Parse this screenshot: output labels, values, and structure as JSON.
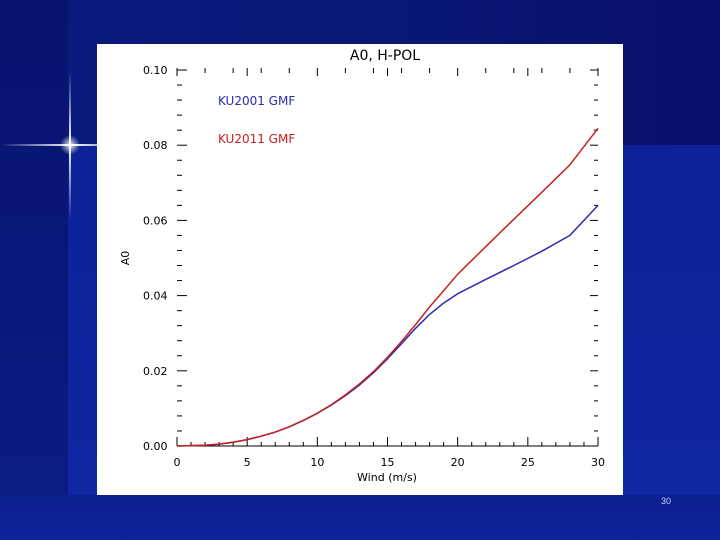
{
  "slide": {
    "number": "30"
  },
  "chart_data": {
    "type": "line",
    "title": "A0, H-POL",
    "xlabel": "Wind (m/s)",
    "ylabel": "A0",
    "xlim": [
      0,
      30
    ],
    "ylim": [
      0,
      0.1
    ],
    "x_ticks": [
      "0",
      "5",
      "10",
      "15",
      "20",
      "25",
      "30"
    ],
    "y_ticks": [
      "0.00",
      "0.02",
      "0.04",
      "0.06",
      "0.08",
      "0.10"
    ],
    "legend_placement": "top-left",
    "grid": false,
    "series": [
      {
        "name": "KU2001 GMF",
        "color": "#2b2bb0",
        "x": [
          0,
          2,
          3,
          4,
          5,
          6,
          7,
          8,
          9,
          10,
          11,
          12,
          13,
          14,
          15,
          16,
          17,
          18,
          19,
          20,
          22,
          24,
          26,
          28,
          30
        ],
        "y": [
          0,
          0.0002,
          0.0005,
          0.001,
          0.0017,
          0.0026,
          0.0037,
          0.0051,
          0.0068,
          0.0087,
          0.0109,
          0.0134,
          0.0162,
          0.0195,
          0.0232,
          0.0272,
          0.0313,
          0.035,
          0.038,
          0.0405,
          0.0443,
          0.048,
          0.0518,
          0.056,
          0.064
        ]
      },
      {
        "name": "KU2011 GMF",
        "color": "#c42222",
        "x": [
          0,
          2,
          3,
          4,
          5,
          6,
          7,
          8,
          9,
          10,
          11,
          12,
          13,
          14,
          15,
          16,
          17,
          18,
          19,
          20,
          22,
          24,
          26,
          28,
          30
        ],
        "y": [
          0,
          0.0002,
          0.0005,
          0.001,
          0.0017,
          0.0026,
          0.0037,
          0.0051,
          0.0068,
          0.0087,
          0.011,
          0.0136,
          0.0165,
          0.0198,
          0.0236,
          0.0278,
          0.0323,
          0.037,
          0.0413,
          0.0457,
          0.053,
          0.0603,
          0.0675,
          0.0748,
          0.0845
        ]
      }
    ]
  }
}
